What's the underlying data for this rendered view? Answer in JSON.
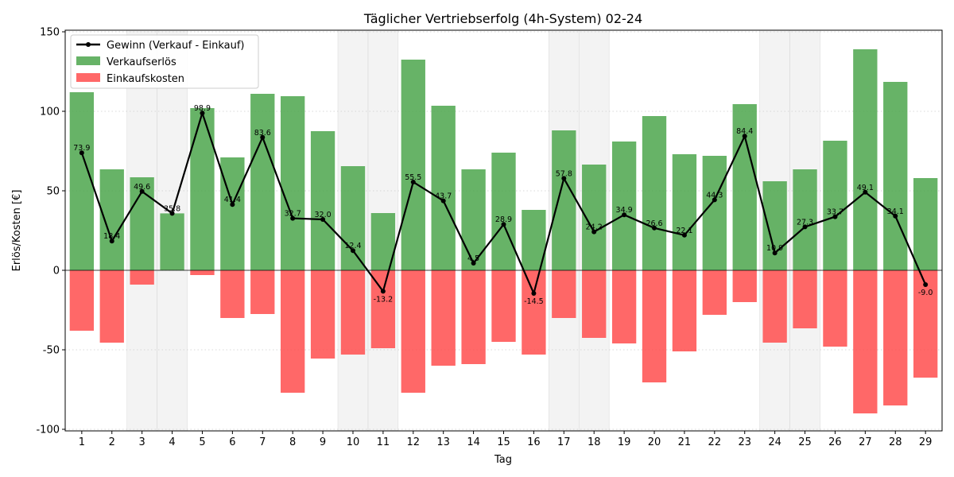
{
  "chart_data": {
    "type": "bar",
    "title": "Täglicher Vertriebserfolg (4h-System) 02-24",
    "xlabel": "Tag",
    "ylabel": "Erlös/Kosten [€]",
    "ylim": [
      -101,
      151
    ],
    "yticks": [
      -100,
      -50,
      0,
      50,
      100,
      150
    ],
    "grid": "horizontal dotted",
    "legend_position": "top-left",
    "weekend_shaded_days": [
      3,
      4,
      10,
      11,
      17,
      18,
      24,
      25
    ],
    "categories": [
      "1",
      "2",
      "3",
      "4",
      "5",
      "6",
      "7",
      "8",
      "9",
      "10",
      "11",
      "12",
      "13",
      "14",
      "15",
      "16",
      "17",
      "18",
      "19",
      "20",
      "21",
      "22",
      "23",
      "24",
      "25",
      "26",
      "27",
      "28",
      "29"
    ],
    "series": [
      {
        "name": "Verkaufserlös",
        "kind": "bar",
        "color": "#4ca64c",
        "values": [
          112,
          63.5,
          58.5,
          35.8,
          102,
          71,
          111,
          109.5,
          87.5,
          65.5,
          36,
          132.5,
          103.5,
          63.5,
          74,
          38,
          88,
          66.5,
          81,
          97,
          73,
          72,
          104.5,
          56,
          63.5,
          81.5,
          139,
          118.5,
          58
        ]
      },
      {
        "name": "Einkaufskosten",
        "kind": "bar",
        "color": "#ff4d4d",
        "values": [
          -38,
          -45.5,
          -9,
          0,
          -3,
          -30,
          -27.5,
          -77,
          -55.5,
          -53,
          -49,
          -77,
          -60,
          -59,
          -45,
          -53,
          -30,
          -42.5,
          -46,
          -70.5,
          -51,
          -28,
          -20,
          -45.5,
          -36.5,
          -48,
          -90,
          -85,
          -67.5
        ]
      },
      {
        "name": "Gewinn (Verkauf - Einkauf)",
        "kind": "line",
        "color": "#000000",
        "values": [
          73.9,
          18.4,
          49.6,
          35.8,
          98.9,
          41.4,
          83.6,
          32.7,
          32.0,
          12.4,
          -13.2,
          55.5,
          43.7,
          4.5,
          28.9,
          -14.5,
          57.8,
          24.2,
          34.9,
          26.6,
          22.1,
          44.3,
          84.4,
          10.9,
          27.3,
          33.7,
          49.1,
          34.1,
          -9.0
        ]
      }
    ],
    "data_labels": [
      "73.9",
      "18.4",
      "49.6",
      "35.8",
      "98.9",
      "41.4",
      "83.6",
      "32.7",
      "32.0",
      "12.4",
      "-13.2",
      "55.5",
      "43.7",
      "4.5",
      "28.9",
      "-14.5",
      "57.8",
      "24.2",
      "34.9",
      "26.6",
      "22.1",
      "44.3",
      "84.4",
      "10.9",
      "27.3",
      "33.7",
      "49.1",
      "34.1",
      "-9.0"
    ]
  }
}
